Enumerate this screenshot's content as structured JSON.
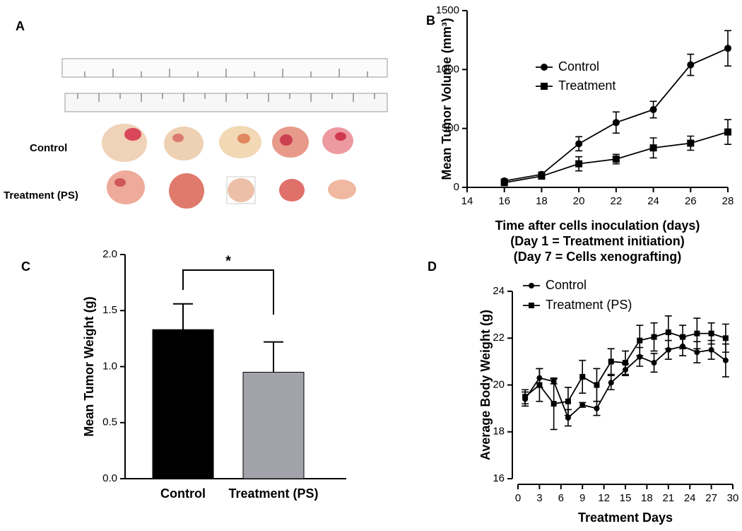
{
  "photo_panel": {
    "label": "A",
    "row_labels": [
      "Control",
      "Treatment (PS)"
    ]
  },
  "chart_data": [
    {
      "type": "line",
      "label": "B",
      "ylabel": "Mean Tumor Volume (mm³)",
      "xlabel": [
        "Time after cells inoculation (days)",
        "(Day 1 = Treatment initiation)",
        "(Day 7 =  Cells xenografting)"
      ],
      "x": [
        16,
        18,
        20,
        22,
        24,
        26,
        28
      ],
      "xlim": [
        14,
        28
      ],
      "xticks": [
        14,
        16,
        18,
        20,
        22,
        24,
        26,
        28
      ],
      "ylim": [
        0,
        1500
      ],
      "yticks": [
        0,
        500,
        1000,
        1500
      ],
      "legend": "upper left",
      "series": [
        {
          "name": "Control",
          "color": "#000000",
          "marker": "circle",
          "values": [
            55,
            110,
            370,
            550,
            660,
            1040,
            1180
          ],
          "errors": [
            15,
            20,
            60,
            90,
            70,
            90,
            150
          ]
        },
        {
          "name": "Treatment",
          "color": "#000000",
          "marker": "square",
          "values": [
            40,
            95,
            200,
            240,
            335,
            375,
            470
          ],
          "errors": [
            10,
            20,
            60,
            40,
            85,
            60,
            105
          ]
        }
      ]
    },
    {
      "type": "bar",
      "label": "C",
      "ylabel": "Mean Tumor Weight (g)",
      "categories": [
        "Control",
        "Treatment (PS)"
      ],
      "values": [
        1.33,
        0.95
      ],
      "errors": [
        0.23,
        0.27
      ],
      "colors": [
        "#000000",
        "#a2a2aa"
      ],
      "ylim": [
        0,
        2.0
      ],
      "yticks": [
        {
          "value": 0,
          "label": "0.0"
        },
        0.5,
        {
          "value": 1,
          "label": "1.0"
        },
        1.5,
        {
          "value": 2,
          "label": "2.0"
        }
      ],
      "annotation": "*"
    },
    {
      "type": "line",
      "label": "D",
      "ylabel": "Average Body Weight (g)",
      "xlabel": [
        "Treatment Days"
      ],
      "x": [
        1,
        3,
        5,
        7,
        9,
        11,
        13,
        15,
        17,
        19,
        21,
        23,
        25,
        27,
        29
      ],
      "xlim": [
        0,
        30
      ],
      "xticks": [
        0,
        3,
        6,
        9,
        12,
        15,
        18,
        21,
        24,
        27,
        30
      ],
      "ylim": [
        16,
        24
      ],
      "yticks": [
        16,
        18,
        20,
        22,
        24
      ],
      "legend": "upper left",
      "series": [
        {
          "name": "Control",
          "color": "#000000",
          "marker": "circle",
          "values": [
            19.4,
            20.3,
            20.15,
            18.6,
            19.15,
            19.0,
            20.1,
            20.65,
            21.2,
            20.95,
            21.5,
            21.65,
            21.4,
            21.5,
            21.05
          ],
          "errors": [
            0.3,
            0.4,
            0.1,
            0.35,
            0.1,
            0.3,
            0.3,
            0.25,
            0.4,
            0.4,
            0.4,
            0.4,
            0.45,
            0.4,
            0.7
          ]
        },
        {
          "name": "Treatment (PS)",
          "color": "#000000",
          "marker": "square",
          "values": [
            19.5,
            20.0,
            19.2,
            19.3,
            20.35,
            20.0,
            21.0,
            20.95,
            21.9,
            22.05,
            22.25,
            22.05,
            22.2,
            22.2,
            22.0
          ],
          "errors": [
            0.3,
            0.7,
            1.1,
            0.6,
            0.7,
            0.7,
            0.55,
            0.5,
            0.65,
            0.6,
            0.7,
            0.5,
            0.65,
            0.45,
            0.6
          ]
        }
      ]
    }
  ]
}
